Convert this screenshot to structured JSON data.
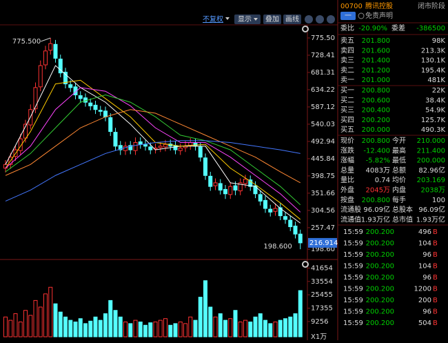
{
  "toolbar": [
    "不复权",
    "显示",
    "叠加",
    "画线"
  ],
  "header": {
    "code": "00700",
    "name": "腾讯控股",
    "status": "闭市阶段",
    "button": "一",
    "disclaimer": "免责声明"
  },
  "ratio": {
    "label": "委比",
    "value": "-20.90%",
    "label2": "委差",
    "value2": "-386500"
  },
  "asks": [
    {
      "label": "卖五",
      "price": "201.800",
      "size": "98K"
    },
    {
      "label": "卖四",
      "price": "201.600",
      "size": "213.3K"
    },
    {
      "label": "卖三",
      "price": "201.400",
      "size": "130.1K"
    },
    {
      "label": "卖二",
      "price": "201.200",
      "size": "195.4K"
    },
    {
      "label": "卖一",
      "price": "201.000",
      "size": "481K"
    }
  ],
  "bids": [
    {
      "label": "买一",
      "price": "200.800",
      "size": "22K"
    },
    {
      "label": "买二",
      "price": "200.600",
      "size": "38.4K"
    },
    {
      "label": "买三",
      "price": "200.400",
      "size": "54.9K"
    },
    {
      "label": "买四",
      "price": "200.200",
      "size": "125.7K"
    },
    {
      "label": "买五",
      "price": "200.000",
      "size": "490.3K"
    }
  ],
  "stats": [
    {
      "label": "现价",
      "value": "200.800",
      "label2": "今开",
      "value2": "210.000",
      "color": "#00d000",
      "color2": "#00d000"
    },
    {
      "label": "涨跌",
      "value": "-12.400",
      "label2": "最高",
      "value2": "211.400",
      "color": "#00d000",
      "color2": "#00d000"
    },
    {
      "label": "涨幅",
      "value": "-5.82%",
      "label2": "最低",
      "value2": "200.000",
      "color": "#00d000",
      "color2": "#00d000"
    },
    {
      "label": "总量",
      "value": "4083万",
      "label2": "总额",
      "value2": "82.96亿",
      "color": "#dddddd",
      "color2": "#dddddd"
    },
    {
      "label": "量比",
      "value": "0.74",
      "label2": "均价",
      "value2": "203.169",
      "color": "#dddddd",
      "color2": "#00d000"
    },
    {
      "label": "外盘",
      "value": "2045万",
      "label2": "内盘",
      "value2": "2038万",
      "color": "#ff3333",
      "color2": "#00d000"
    },
    {
      "label": "按盘",
      "value": "200.800",
      "label2": "每手",
      "value2": "100",
      "color": "#00d000",
      "color2": "#dddddd"
    },
    {
      "label": "流通股",
      "value": "96.09亿",
      "label2": "总股本",
      "value2": "96.09亿",
      "color": "#dddddd",
      "color2": "#dddddd"
    },
    {
      "label": "流通值",
      "value": "1.93万亿",
      "label2": "总市值",
      "value2": "1.93万亿",
      "color": "#dddddd",
      "color2": "#dddddd"
    }
  ],
  "trades": [
    [
      "15:59",
      "200.200",
      "496",
      "B"
    ],
    [
      "15:59",
      "200.200",
      "104",
      "B"
    ],
    [
      "15:59",
      "200.200",
      "96",
      "B"
    ],
    [
      "15:59",
      "200.200",
      "104",
      "B"
    ],
    [
      "15:59",
      "200.200",
      "96",
      "B"
    ],
    [
      "15:59",
      "200.200",
      "1200",
      "B"
    ],
    [
      "15:59",
      "200.200",
      "200",
      "B"
    ],
    [
      "15:59",
      "200.200",
      "96",
      "B"
    ],
    [
      "15:59",
      "200.200",
      "504",
      "B"
    ]
  ],
  "chart_data": {
    "type": "candlestick",
    "up_color": "#ff3333",
    "down_color": "#54ffff",
    "ylim": [
      180,
      793
    ],
    "yticks": [
      {
        "value": 775.5,
        "label": "775.50"
      },
      728.41,
      681.31,
      634.22,
      587.12,
      540.03,
      492.94,
      445.84,
      398.75,
      351.66,
      304.56,
      257.47,
      {
        "value": 198.6,
        "label": "198.60"
      }
    ],
    "high_label": "775.500",
    "low_label": "198.600",
    "last_label": "216.914",
    "open": [
      420,
      430,
      452,
      468,
      502,
      538,
      582,
      642,
      702,
      742,
      758,
      718,
      682,
      648,
      642,
      618,
      612,
      598,
      592,
      578,
      576,
      558,
      518,
      482,
      468,
      482,
      468,
      492,
      484,
      478,
      472,
      476,
      478,
      486,
      482,
      468,
      476,
      482,
      488,
      478,
      448,
      398,
      372,
      378,
      362,
      348,
      372,
      358,
      378,
      388,
      372,
      348,
      332,
      308,
      302,
      312,
      288,
      278,
      262,
      240
    ],
    "high": [
      442,
      462,
      482,
      514,
      552,
      594,
      654,
      714,
      754,
      775.5,
      770,
      730,
      694,
      660,
      654,
      630,
      624,
      610,
      604,
      590,
      588,
      570,
      530,
      494,
      492,
      494,
      504,
      504,
      496,
      490,
      487,
      492,
      497,
      498,
      494,
      487,
      494,
      502,
      500,
      490,
      460,
      410,
      392,
      390,
      374,
      382,
      384,
      392,
      402,
      400,
      384,
      360,
      344,
      320,
      324,
      324,
      300,
      290,
      274,
      252
    ],
    "low": [
      408,
      418,
      440,
      456,
      490,
      526,
      570,
      630,
      690,
      730,
      708,
      668,
      638,
      628,
      608,
      598,
      588,
      578,
      568,
      563,
      548,
      508,
      468,
      456,
      456,
      458,
      456,
      473,
      468,
      458,
      460,
      464,
      466,
      468,
      458,
      456,
      464,
      470,
      468,
      438,
      388,
      358,
      360,
      348,
      336,
      336,
      346,
      346,
      366,
      358,
      338,
      318,
      298,
      288,
      290,
      278,
      268,
      248,
      228,
      198.6
    ],
    "close": [
      430,
      450,
      470,
      500,
      540,
      580,
      640,
      700,
      740,
      760,
      720,
      680,
      650,
      640,
      620,
      610,
      600,
      590,
      580,
      575,
      560,
      520,
      480,
      470,
      480,
      470,
      490,
      485,
      480,
      470,
      475,
      480,
      485,
      480,
      470,
      475,
      480,
      490,
      480,
      450,
      400,
      370,
      380,
      360,
      350,
      370,
      360,
      380,
      390,
      370,
      350,
      330,
      310,
      300,
      310,
      290,
      280,
      260,
      240,
      216
    ],
    "ma_lines": [
      {
        "color": "#ffffff",
        "x": [
          0,
          5,
          10,
          15,
          20,
          25,
          30,
          35,
          40,
          45,
          50,
          55,
          59
        ],
        "values": [
          430,
          560,
          700,
          640,
          600,
          540,
          470,
          480,
          480,
          380,
          370,
          310,
          270
        ]
      },
      {
        "color": "#ffcc00",
        "x": [
          0,
          5,
          10,
          15,
          20,
          25,
          30,
          35,
          40,
          45,
          50,
          55,
          59
        ],
        "values": [
          420,
          520,
          650,
          660,
          610,
          560,
          490,
          480,
          485,
          420,
          375,
          325,
          280
        ]
      },
      {
        "color": "#ff44ff",
        "x": [
          0,
          5,
          10,
          15,
          20,
          25,
          30,
          35,
          40,
          45,
          50,
          55,
          59
        ],
        "values": [
          420,
          480,
          580,
          640,
          630,
          590,
          530,
          490,
          490,
          450,
          400,
          350,
          300
        ]
      },
      {
        "color": "#33cc33",
        "x": [
          0,
          5,
          10,
          15,
          20,
          25,
          30,
          35,
          40,
          45,
          50,
          55,
          59
        ],
        "values": [
          410,
          460,
          530,
          600,
          620,
          600,
          560,
          510,
          495,
          470,
          420,
          370,
          320
        ]
      },
      {
        "color": "#ff8833",
        "x": [
          0,
          5,
          10,
          15,
          20,
          25,
          30,
          35,
          40,
          45,
          50,
          55,
          59
        ],
        "values": [
          400,
          430,
          480,
          530,
          560,
          580,
          570,
          540,
          510,
          480,
          450,
          410,
          380
        ]
      },
      {
        "color": "#4477ff",
        "x": [
          0,
          5,
          10,
          15,
          20,
          25,
          30,
          35,
          40,
          45,
          50,
          55,
          59
        ],
        "values": [
          330,
          360,
          400,
          430,
          460,
          480,
          490,
          495,
          495,
          490,
          480,
          470,
          460
        ]
      }
    ],
    "volume": {
      "unit": "X1万",
      "ylim": [
        0,
        46000
      ],
      "yticks": [
        41654,
        33554,
        25455,
        17355,
        9256
      ],
      "values": [
        12000,
        10000,
        14000,
        9000,
        16000,
        13000,
        22000,
        18000,
        26000,
        30000,
        20000,
        15000,
        12000,
        10000,
        9000,
        11000,
        8000,
        9500,
        12000,
        10000,
        14000,
        22000,
        16000,
        12000,
        9000,
        8000,
        10000,
        9000,
        7000,
        8500,
        9000,
        10000,
        11000,
        7000,
        8000,
        9000,
        8000,
        12000,
        10000,
        24000,
        34000,
        18000,
        12000,
        14000,
        10000,
        11000,
        16000,
        9000,
        10000,
        9000,
        12000,
        14000,
        10000,
        8000,
        9000,
        10000,
        11000,
        12000,
        14000,
        28000
      ]
    }
  }
}
